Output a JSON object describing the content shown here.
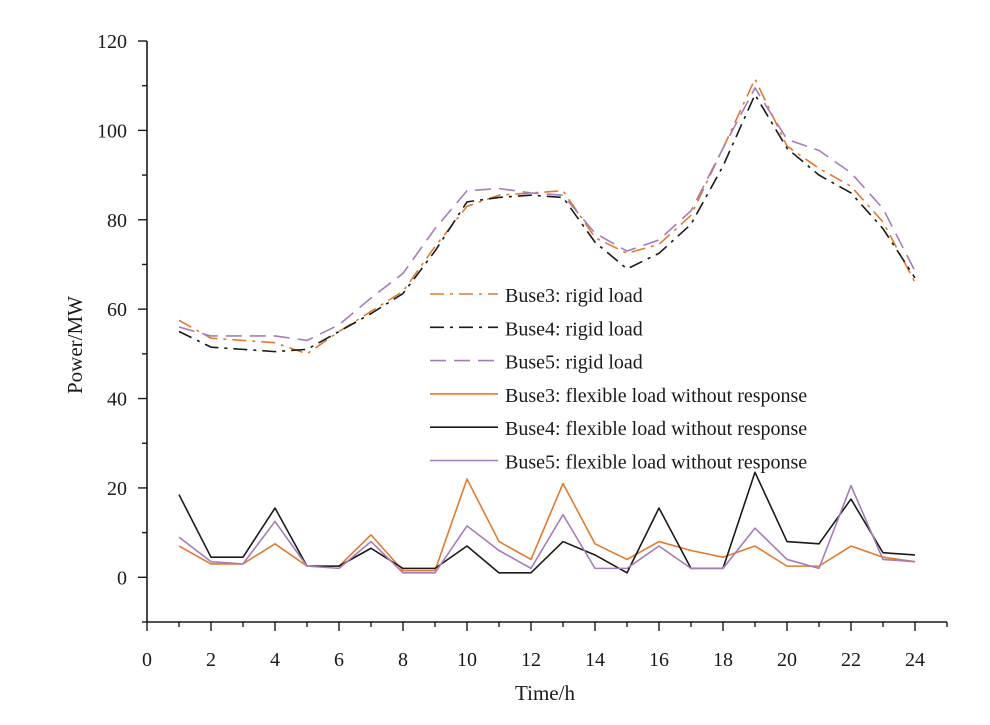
{
  "chart_data": {
    "type": "line",
    "title": "",
    "xlabel": "Time/h",
    "ylabel": "Power/MW",
    "xlim": [
      0,
      25
    ],
    "ylim": [
      -10,
      120
    ],
    "x_ticks": [
      0,
      2,
      4,
      6,
      8,
      10,
      12,
      14,
      16,
      18,
      20,
      22,
      24
    ],
    "y_ticks": [
      0,
      20,
      40,
      60,
      80,
      100,
      120
    ],
    "grid": false,
    "legend_position": "center",
    "x": [
      1,
      2,
      3,
      4,
      5,
      6,
      7,
      8,
      9,
      10,
      11,
      12,
      13,
      14,
      15,
      16,
      17,
      18,
      19,
      20,
      21,
      22,
      23,
      24
    ],
    "series": [
      {
        "name": "Buse3: rigid load",
        "color": "#e07b2e",
        "dash": "dash-dot",
        "values": [
          57.5,
          53.5,
          53,
          52.5,
          50,
          55,
          59.5,
          64,
          74,
          83,
          85.5,
          86,
          86.5,
          76,
          72.5,
          74.5,
          81,
          96,
          111.5,
          96.5,
          91.5,
          87.5,
          79.5,
          66
        ]
      },
      {
        "name": "Buse4: rigid load",
        "color": "#1a1a1a",
        "dash": "dash-dot",
        "values": [
          55,
          51.5,
          51,
          50.5,
          51,
          55,
          59,
          63.5,
          73,
          84,
          85,
          85.5,
          85,
          75,
          69,
          72.5,
          79,
          92,
          108,
          96,
          90,
          86,
          78,
          67
        ]
      },
      {
        "name": "Buse5: rigid load",
        "color": "#a67bb8",
        "dash": "long-dash",
        "values": [
          56,
          54,
          54,
          54,
          53,
          56.5,
          62.5,
          68,
          78,
          86.5,
          87,
          86,
          85.5,
          77,
          73,
          75.5,
          82,
          96,
          109.5,
          98,
          95.5,
          90.5,
          82.5,
          68.5
        ]
      },
      {
        "name": "Buse3: flexible load without response",
        "color": "#e07b2e",
        "dash": "solid",
        "values": [
          7,
          3,
          3,
          7.5,
          2.5,
          2.5,
          9.5,
          1.5,
          1.5,
          22,
          8,
          4,
          21,
          7.5,
          4,
          8,
          6,
          4.5,
          7,
          2.5,
          2.5,
          7,
          4.5,
          3.5
        ]
      },
      {
        "name": "Buse4: flexible load without response",
        "color": "#1a1a1a",
        "dash": "solid",
        "values": [
          18.5,
          4.5,
          4.5,
          15.5,
          2.5,
          2.5,
          6.5,
          2,
          2,
          7,
          1,
          1,
          8,
          5,
          1,
          15.5,
          2,
          2,
          23.5,
          8,
          7.5,
          17.5,
          5.5,
          5
        ]
      },
      {
        "name": "Buse5: flexible load without response",
        "color": "#a67bb8",
        "dash": "solid",
        "values": [
          9,
          3.5,
          3,
          12.5,
          2.5,
          2,
          8,
          1,
          1,
          11.5,
          6,
          2,
          14,
          2,
          2,
          7,
          2,
          2,
          11,
          4,
          2,
          20.5,
          4,
          3.5
        ]
      }
    ]
  }
}
